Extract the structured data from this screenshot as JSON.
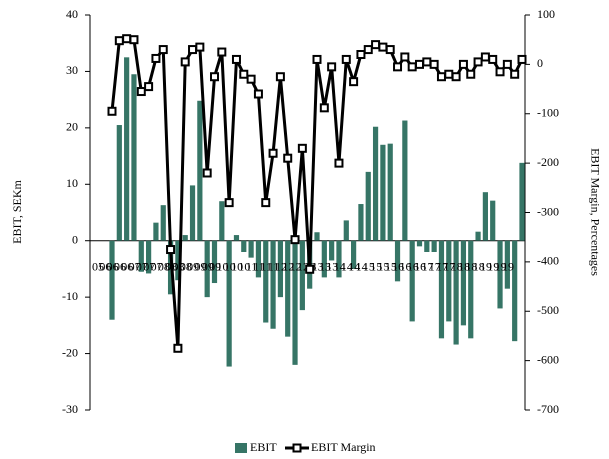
{
  "chart_data": {
    "type": "bar-line",
    "y_label": "EBIT, SEKm",
    "y2_label": "EBIT Margin, Percentages",
    "categories": [
      "05",
      "06",
      "06",
      "06",
      "06",
      "07",
      "07",
      "07",
      "07",
      "08",
      "08",
      "08",
      "08",
      "09",
      "09",
      "09",
      "09",
      "10",
      "10",
      "10",
      "10",
      "11",
      "11",
      "11",
      "11",
      "12",
      "12",
      "12",
      "12",
      "13",
      "13",
      "13",
      "13",
      "14",
      "14",
      "14",
      "14",
      "15",
      "15",
      "15",
      "15",
      "16",
      "16",
      "16",
      "16",
      "17",
      "17",
      "17",
      "17",
      "18",
      "18",
      "18",
      "18",
      "19",
      "19",
      "19",
      "19"
    ],
    "ylim": [
      -30,
      40
    ],
    "yticks": [
      -30,
      -20,
      -10,
      0,
      10,
      20,
      30,
      40
    ],
    "y2lim": [
      -700,
      100
    ],
    "y2ticks": [
      -700,
      -600,
      -500,
      -400,
      -300,
      -200,
      -100,
      0,
      100
    ],
    "series": [
      {
        "name": "EBIT",
        "kind": "bar",
        "color": "#367566",
        "values": [
          -14,
          20.5,
          32.5,
          29.5,
          -5.5,
          -5.8,
          3.2,
          6.3,
          -9.5,
          -7,
          1,
          9.8,
          24.8,
          -10,
          -7.5,
          7,
          -22.3,
          1,
          -2,
          -3,
          -6.5,
          -14.5,
          -15.6,
          -10,
          -17,
          -22,
          -12.3,
          -8.5,
          1.5,
          -6.5,
          -3.5,
          -6.5,
          3.6,
          -5,
          6.5,
          12.2,
          20.2,
          17,
          17.2,
          -7.2,
          21.3,
          -14.3,
          -1,
          -2,
          -2,
          -17.3,
          -14.3,
          -18.4,
          -15,
          -17.3,
          1.6,
          8.6,
          7.1,
          -12,
          -8.5,
          -17.8,
          13.8
        ]
      },
      {
        "name": "EBIT Margin",
        "kind": "line",
        "axis": "y2",
        "color": "#000000",
        "values": [
          -95,
          48,
          52,
          50,
          -55,
          -45,
          12,
          30,
          -375,
          -575,
          5,
          30,
          35,
          -220,
          -25,
          25,
          -280,
          10,
          -20,
          -30,
          -60,
          -280,
          -180,
          -25,
          -190,
          -355,
          -170,
          -415,
          10,
          -88,
          -5,
          -200,
          10,
          -35,
          20,
          30,
          40,
          35,
          30,
          -5,
          15,
          -5,
          0,
          5,
          0,
          -25,
          -20,
          -25,
          0,
          -20,
          5,
          15,
          10,
          -15,
          0,
          -20,
          10
        ]
      }
    ]
  }
}
